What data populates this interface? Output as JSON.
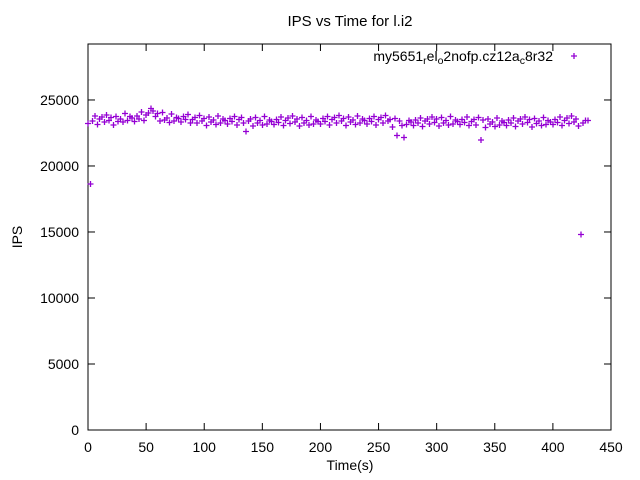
{
  "chart_data": {
    "type": "scatter",
    "title": "IPS vs Time for l.i2",
    "xlabel": "Time(s)",
    "ylabel": "IPS",
    "xlim": [
      0,
      450
    ],
    "ylim": [
      0,
      29240
    ],
    "xticks": [
      0,
      50,
      100,
      150,
      200,
      250,
      300,
      350,
      400,
      450
    ],
    "yticks": [
      0,
      5000,
      10000,
      15000,
      20000,
      25000
    ],
    "grid": false,
    "legend_position": "top-right-inside",
    "colors": {
      "points": "#9400D3",
      "axis": "#000000",
      "background": "#FFFFFF",
      "text": "#000000"
    },
    "series": [
      {
        "name_display_segments": [
          {
            "text": "my5651"
          },
          {
            "text": "r",
            "subscript": true
          },
          {
            "text": "el"
          },
          {
            "text": "o",
            "subscript": true
          },
          {
            "text": "2nofp.cz12a"
          },
          {
            "text": "c",
            "subscript": true
          },
          {
            "text": "8r32"
          }
        ],
        "marker": "plus",
        "color": "#9400D3",
        "x": [
          0,
          2,
          4,
          6,
          8,
          10,
          12,
          14,
          16,
          18,
          20,
          22,
          24,
          26,
          28,
          30,
          32,
          34,
          36,
          38,
          40,
          42,
          44,
          46,
          48,
          50,
          52,
          54,
          56,
          58,
          60,
          62,
          64,
          66,
          68,
          70,
          72,
          74,
          76,
          78,
          80,
          82,
          84,
          86,
          88,
          90,
          92,
          94,
          96,
          98,
          100,
          102,
          104,
          106,
          108,
          110,
          112,
          114,
          116,
          118,
          120,
          122,
          124,
          126,
          128,
          130,
          132,
          134,
          136,
          138,
          140,
          142,
          144,
          146,
          148,
          150,
          152,
          154,
          156,
          158,
          160,
          162,
          164,
          166,
          168,
          170,
          172,
          174,
          176,
          178,
          180,
          182,
          184,
          186,
          188,
          190,
          192,
          194,
          196,
          198,
          200,
          202,
          204,
          206,
          208,
          210,
          212,
          214,
          216,
          218,
          220,
          222,
          224,
          226,
          228,
          230,
          232,
          234,
          236,
          238,
          240,
          242,
          244,
          246,
          248,
          250,
          252,
          254,
          256,
          258,
          260,
          262,
          264,
          266,
          268,
          270,
          272,
          274,
          276,
          278,
          280,
          282,
          284,
          286,
          288,
          290,
          292,
          294,
          296,
          298,
          300,
          302,
          304,
          306,
          308,
          310,
          312,
          314,
          316,
          318,
          320,
          322,
          324,
          326,
          328,
          330,
          332,
          334,
          336,
          338,
          340,
          342,
          344,
          346,
          348,
          350,
          352,
          354,
          356,
          358,
          360,
          362,
          364,
          366,
          368,
          370,
          372,
          374,
          376,
          378,
          380,
          382,
          384,
          386,
          388,
          390,
          392,
          394,
          396,
          398,
          400,
          402,
          404,
          406,
          408,
          410,
          412,
          414,
          416,
          418,
          420,
          422,
          424,
          426,
          428,
          430
        ],
        "y": [
          23230,
          18650,
          23410,
          23800,
          23155,
          23560,
          23725,
          23320,
          23875,
          23440,
          23665,
          23110,
          23755,
          23365,
          23545,
          23350,
          23980,
          23440,
          23740,
          23635,
          23380,
          23785,
          23560,
          24100,
          23455,
          23860,
          24025,
          24350,
          24175,
          23740,
          23965,
          23410,
          24055,
          23465,
          23645,
          23300,
          23930,
          23390,
          23690,
          23585,
          23330,
          23735,
          23510,
          23900,
          23255,
          23510,
          23675,
          23270,
          23825,
          23390,
          23615,
          23060,
          23705,
          23315,
          23495,
          23150,
          23780,
          23240,
          23540,
          23435,
          23180,
          23585,
          23360,
          23750,
          23105,
          23510,
          23675,
          23270,
          22600,
          23390,
          23565,
          23010,
          23655,
          23265,
          23445,
          23100,
          23730,
          23190,
          23490,
          23385,
          23130,
          23535,
          23310,
          23700,
          23055,
          23460,
          23625,
          23220,
          23775,
          23340,
          23565,
          23010,
          23655,
          23265,
          23445,
          23100,
          23730,
          23190,
          23490,
          23385,
          23180,
          23585,
          23360,
          23750,
          23105,
          23510,
          23675,
          23270,
          23825,
          23390,
          23615,
          23060,
          23705,
          23315,
          23495,
          23150,
          23780,
          23240,
          23540,
          23435,
          23180,
          23585,
          23360,
          23750,
          23105,
          23510,
          23675,
          23270,
          23825,
          23390,
          23515,
          22960,
          23605,
          22300,
          23395,
          23050,
          22150,
          23140,
          23440,
          23335,
          23080,
          23485,
          23260,
          23650,
          23005,
          23410,
          23575,
          23170,
          23725,
          23290,
          23565,
          23010,
          23655,
          23265,
          23445,
          23100,
          23730,
          23190,
          23490,
          23385,
          23130,
          23535,
          23310,
          23700,
          23055,
          23360,
          23525,
          23120,
          23675,
          21950,
          23465,
          22910,
          23555,
          23165,
          23345,
          23000,
          23630,
          23090,
          23390,
          23285,
          23080,
          23485,
          23260,
          23650,
          23005,
          23410,
          23575,
          23170,
          23725,
          23290,
          23515,
          22960,
          23605,
          23215,
          23395,
          23050,
          23680,
          23140,
          23440,
          23335,
          23130,
          23535,
          23310,
          23700,
          23055,
          23460,
          23625,
          23220,
          23775,
          23340,
          23565,
          23010,
          14800,
          23265,
          23445,
          23430
        ]
      }
    ]
  }
}
